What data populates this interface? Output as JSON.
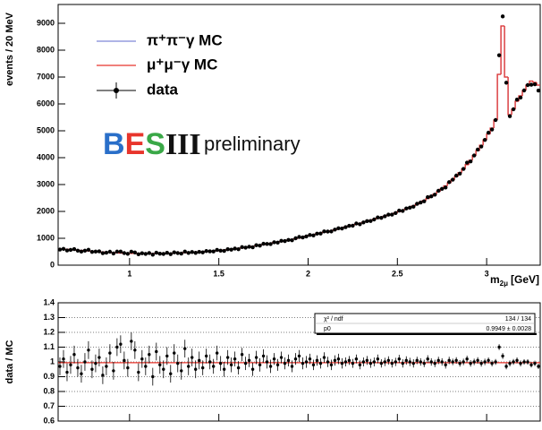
{
  "chart_data": [
    {
      "type": "histogram",
      "y_label": "events / 20 MeV",
      "x_label": {
        "symbol": "m",
        "subscript": "2μ",
        "unit": "[GeV]"
      },
      "logo": [
        "B",
        "E",
        "S",
        "III"
      ],
      "annotation": "preliminary",
      "xlim": [
        0.6,
        3.3
      ],
      "xticks": [
        1,
        1.5,
        2,
        2.5,
        3
      ],
      "ylim": [
        0,
        9700
      ],
      "yticks": [
        0,
        1000,
        2000,
        3000,
        4000,
        5000,
        6000,
        7000,
        8000,
        9000
      ],
      "bins": [
        0.6,
        0.62,
        0.64,
        0.66,
        0.68,
        0.7,
        0.72,
        0.74,
        0.76,
        0.78,
        0.8,
        0.82,
        0.84,
        0.86,
        0.88,
        0.9,
        0.92,
        0.94,
        0.96,
        0.98,
        1,
        1.02,
        1.04,
        1.06,
        1.08,
        1.1,
        1.12,
        1.14,
        1.16,
        1.18,
        1.2,
        1.22,
        1.24,
        1.26,
        1.28,
        1.3,
        1.32,
        1.34,
        1.36,
        1.38,
        1.4,
        1.42,
        1.44,
        1.46,
        1.48,
        1.5,
        1.52,
        1.54,
        1.56,
        1.58,
        1.6,
        1.62,
        1.64,
        1.66,
        1.68,
        1.7,
        1.72,
        1.74,
        1.76,
        1.78,
        1.8,
        1.82,
        1.84,
        1.86,
        1.88,
        1.9,
        1.92,
        1.94,
        1.96,
        1.98,
        2,
        2.02,
        2.04,
        2.06,
        2.08,
        2.1,
        2.12,
        2.14,
        2.16,
        2.18,
        2.2,
        2.22,
        2.24,
        2.26,
        2.28,
        2.3,
        2.32,
        2.34,
        2.36,
        2.38,
        2.4,
        2.42,
        2.44,
        2.46,
        2.48,
        2.5,
        2.52,
        2.54,
        2.56,
        2.58,
        2.6,
        2.62,
        2.64,
        2.66,
        2.68,
        2.7,
        2.72,
        2.74,
        2.76,
        2.78,
        2.8,
        2.82,
        2.84,
        2.86,
        2.88,
        2.9,
        2.92,
        2.94,
        2.96,
        2.98,
        3,
        3.02,
        3.04,
        3.06,
        3.08,
        3.1,
        3.12,
        3.14,
        3.16,
        3.18,
        3.2,
        3.22,
        3.24,
        3.26,
        3.28,
        3.3
      ],
      "series": [
        {
          "name": "π⁺π⁻γ MC",
          "color": "#7f86d6",
          "style": "step",
          "values": [
            600,
            595,
            590,
            580,
            570,
            560,
            550,
            540,
            530,
            520,
            510,
            500,
            490,
            480,
            472,
            465,
            458,
            452,
            446,
            442,
            440,
            438,
            436,
            434,
            432,
            431,
            432,
            434,
            436,
            439,
            442,
            446,
            450,
            455,
            460,
            465,
            470,
            476,
            482,
            488,
            495,
            505,
            515,
            525,
            535,
            545,
            560,
            575,
            590,
            605,
            620,
            640,
            660,
            680,
            700,
            720,
            742,
            765,
            788,
            810,
            835,
            858,
            880,
            905,
            930,
            955,
            980,
            1010,
            1040,
            1070,
            1100,
            1130,
            1160,
            1190,
            1220,
            1250,
            1280,
            1310,
            1345,
            1380,
            1415,
            1450,
            1485,
            1520,
            1555,
            1590,
            1625,
            1660,
            1700,
            1740,
            1780,
            1820,
            1860,
            1900,
            1940,
            1990,
            2040,
            2090,
            2140,
            2200,
            2260,
            2330,
            2400,
            2480,
            2560,
            2650,
            2740,
            2840,
            2950,
            3060,
            3180,
            3300,
            3440,
            3580,
            3740,
            3900,
            4080,
            4260,
            4460,
            4660,
            4880,
            5100,
            5400,
            7100,
            8900,
            7000,
            5600,
            5800,
            6100,
            6300,
            6500,
            6700,
            6850,
            6800,
            6700
          ]
        },
        {
          "name": "μ⁺μ⁻γ MC",
          "color": "#e8352c",
          "style": "step",
          "values": [
            600,
            595,
            590,
            580,
            570,
            560,
            550,
            540,
            530,
            520,
            510,
            500,
            490,
            480,
            472,
            465,
            458,
            452,
            446,
            442,
            440,
            438,
            436,
            434,
            432,
            431,
            432,
            434,
            436,
            439,
            442,
            446,
            450,
            455,
            460,
            465,
            470,
            476,
            482,
            488,
            495,
            505,
            515,
            525,
            535,
            545,
            560,
            575,
            590,
            605,
            620,
            640,
            660,
            680,
            700,
            720,
            742,
            765,
            788,
            810,
            835,
            858,
            880,
            905,
            930,
            955,
            980,
            1010,
            1040,
            1070,
            1100,
            1130,
            1160,
            1190,
            1220,
            1250,
            1280,
            1310,
            1345,
            1380,
            1415,
            1450,
            1485,
            1520,
            1555,
            1590,
            1625,
            1660,
            1700,
            1740,
            1780,
            1820,
            1860,
            1900,
            1940,
            1990,
            2040,
            2090,
            2140,
            2200,
            2260,
            2330,
            2400,
            2480,
            2560,
            2650,
            2740,
            2840,
            2950,
            3060,
            3180,
            3300,
            3440,
            3580,
            3740,
            3900,
            4080,
            4260,
            4460,
            4660,
            4880,
            5100,
            5400,
            7100,
            8900,
            7000,
            5600,
            5800,
            6100,
            6300,
            6500,
            6700,
            6850,
            6800,
            6700
          ]
        },
        {
          "name": "data",
          "color": "#000000",
          "style": "points",
          "values": [
            582,
            607,
            549,
            568,
            599,
            538,
            506,
            540,
            572,
            494,
            505,
            515,
            446,
            466,
            500,
            437,
            504,
            506,
            450,
            424,
            502,
            473,
            405,
            443,
            419,
            453,
            389,
            464,
            427,
            417,
            460,
            410,
            477,
            450,
            432,
            507,
            456,
            490,
            458,
            493,
            475,
            525,
            515,
            509,
            567,
            540,
            532,
            592,
            578,
            617,
            595,
            672,
            653,
            687,
            665,
            742,
            727,
            796,
            788,
            786,
            852,
            841,
            906,
            896,
            939,
            926,
            1000,
            1050,
            1030,
            1070,
            1122,
            1107,
            1172,
            1178,
            1257,
            1250,
            1254,
            1323,
            1372,
            1366,
            1415,
            1465,
            1470,
            1550,
            1524,
            1590,
            1641,
            1643,
            1700,
            1775,
            1762,
            1820,
            1879,
            1881,
            1940,
            2030,
            2020,
            2111,
            2140,
            2178,
            2283,
            2330,
            2376,
            2530,
            2560,
            2624,
            2767,
            2840,
            2891,
            3091,
            3180,
            3333,
            3406,
            3580,
            3815,
            3861,
            4080,
            4303,
            4415,
            4660,
            4929,
            5049,
            5400,
            7810,
            9256,
            6790,
            5544,
            5800,
            6161,
            6237,
            6500,
            6700,
            6713,
            6732,
            6499
          ]
        }
      ]
    },
    {
      "type": "ratio",
      "y_label": "data / MC",
      "xlim": [
        0.6,
        3.3
      ],
      "xticks": [
        1,
        1.5,
        2,
        2.5,
        3
      ],
      "ylim": [
        0.6,
        1.4
      ],
      "yticks": [
        0.6,
        0.7,
        0.8,
        0.9,
        1,
        1.1,
        1.2,
        1.3,
        1.4
      ],
      "grid": true,
      "color": "#000000",
      "fit_color": "#e8352c",
      "values": [
        0.97,
        1.02,
        0.93,
        0.98,
        1.05,
        0.96,
        0.92,
        1.0,
        1.08,
        0.95,
        0.99,
        1.03,
        0.91,
        0.97,
        1.06,
        0.94,
        1.1,
        1.12,
        1.01,
        0.96,
        1.14,
        1.08,
        0.93,
        1.02,
        0.97,
        1.05,
        0.9,
        1.07,
        0.98,
        0.95,
        1.04,
        0.92,
        1.06,
        0.99,
        0.94,
        1.09,
        0.97,
        1.03,
        0.95,
        1.01,
        0.96,
        1.04,
        1.0,
        0.97,
        1.06,
        0.99,
        0.95,
        1.03,
        0.98,
        1.02,
        0.96,
        1.05,
        0.99,
        1.01,
        0.95,
        1.03,
        0.98,
        1.04,
        1.0,
        0.97,
        1.02,
        0.98,
        1.03,
        0.99,
        1.01,
        0.97,
        1.02,
        1.04,
        0.99,
        1.0,
        1.02,
        0.98,
        1.01,
        0.99,
        1.03,
        1.0,
        0.98,
        1.01,
        1.02,
        0.99,
        1.0,
        1.01,
        0.99,
        1.02,
        0.98,
        1.0,
        1.01,
        0.99,
        1.0,
        1.02,
        0.99,
        1.0,
        1.01,
        0.99,
        1.0,
        1.02,
        0.99,
        1.01,
        1.0,
        0.99,
        1.01,
        1.0,
        0.99,
        1.02,
        1.0,
        0.99,
        1.01,
        1.0,
        0.98,
        1.01,
        1.0,
        1.01,
        0.99,
        1.0,
        1.02,
        0.99,
        1.0,
        1.01,
        0.99,
        1.0,
        1.01,
        0.99,
        1.0,
        1.1,
        1.04,
        0.97,
        0.99,
        1.0,
        1.01,
        0.99,
        1.0,
        1.0,
        0.98,
        0.99,
        0.97
      ],
      "errors": [
        0.06,
        0.06,
        0.06,
        0.06,
        0.06,
        0.06,
        0.06,
        0.06,
        0.06,
        0.06,
        0.06,
        0.06,
        0.06,
        0.06,
        0.06,
        0.06,
        0.06,
        0.06,
        0.06,
        0.06,
        0.06,
        0.06,
        0.06,
        0.06,
        0.06,
        0.06,
        0.06,
        0.06,
        0.06,
        0.06,
        0.06,
        0.06,
        0.06,
        0.06,
        0.06,
        0.06,
        0.06,
        0.06,
        0.06,
        0.06,
        0.05,
        0.05,
        0.05,
        0.05,
        0.05,
        0.05,
        0.05,
        0.05,
        0.05,
        0.05,
        0.045,
        0.045,
        0.045,
        0.045,
        0.045,
        0.045,
        0.045,
        0.045,
        0.045,
        0.045,
        0.04,
        0.04,
        0.04,
        0.04,
        0.04,
        0.04,
        0.04,
        0.04,
        0.04,
        0.04,
        0.035,
        0.035,
        0.035,
        0.035,
        0.035,
        0.035,
        0.035,
        0.035,
        0.035,
        0.035,
        0.03,
        0.03,
        0.03,
        0.03,
        0.03,
        0.03,
        0.03,
        0.03,
        0.03,
        0.03,
        0.028,
        0.028,
        0.028,
        0.028,
        0.028,
        0.028,
        0.028,
        0.028,
        0.028,
        0.028,
        0.025,
        0.025,
        0.025,
        0.025,
        0.025,
        0.025,
        0.025,
        0.025,
        0.025,
        0.025,
        0.022,
        0.022,
        0.022,
        0.022,
        0.022,
        0.022,
        0.022,
        0.022,
        0.022,
        0.022,
        0.02,
        0.02,
        0.02,
        0.02,
        0.02,
        0.02,
        0.02,
        0.02,
        0.02,
        0.02,
        0.018,
        0.018,
        0.018,
        0.018,
        0.018
      ],
      "fit_box": {
        "chi2_name": "χ² / ndf",
        "chi2_value": "134 / 134",
        "p0_name": "p0"
      },
      "fit_p0": {
        "value": 0.9949,
        "label": "0.9949 ± 0.0028"
      }
    }
  ]
}
